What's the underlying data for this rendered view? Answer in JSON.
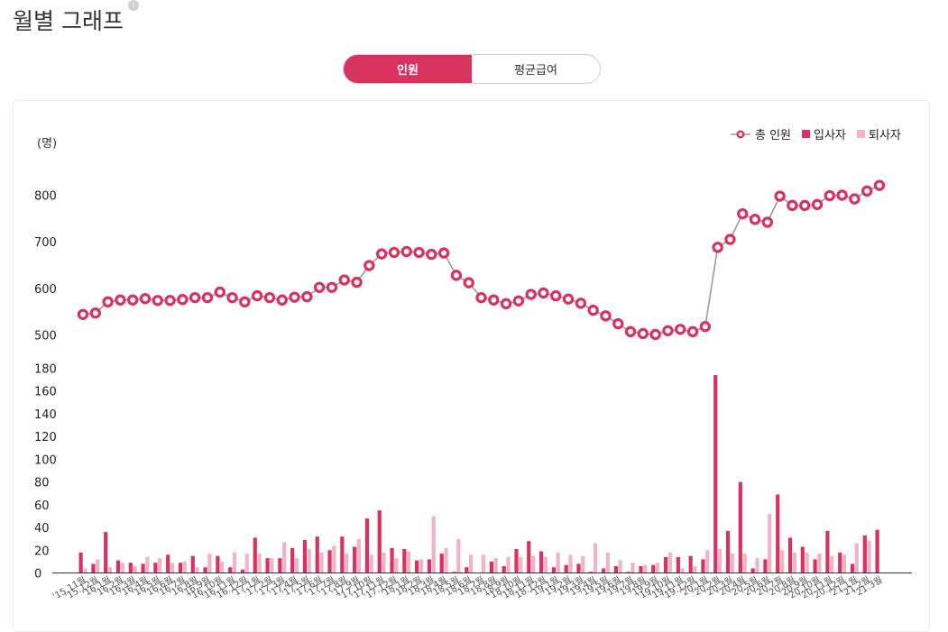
{
  "page": {
    "title": "월별 그래프",
    "info_icon": "i"
  },
  "toggle": {
    "options": [
      "인원",
      "평균급여"
    ],
    "active": 0
  },
  "colors": {
    "accent": "#d8325f",
    "hire": "#d8325f",
    "leave": "#f2b3c6",
    "line": "#9a9a9a"
  },
  "chart_data": [
    {
      "type": "line",
      "unit": "(명)",
      "yticks": [
        500,
        600,
        700,
        800
      ],
      "ylim": [
        500,
        830
      ],
      "series": [
        {
          "name": "총 인원",
          "values": [
            544,
            547,
            571,
            575,
            575,
            578,
            574,
            574,
            576,
            580,
            580,
            592,
            580,
            571,
            584,
            580,
            575,
            581,
            582,
            602,
            602,
            618,
            613,
            649,
            674,
            677,
            679,
            677,
            673,
            676,
            628,
            612,
            580,
            575,
            567,
            573,
            587,
            590,
            584,
            577,
            568,
            553,
            541,
            524,
            507,
            503,
            501,
            509,
            512,
            507,
            518,
            688,
            705,
            760,
            748,
            742,
            798,
            778,
            778,
            780,
            799,
            800,
            792,
            809,
            821
          ]
        }
      ],
      "legend_position": "top-right"
    },
    {
      "type": "bar",
      "yticks": [
        0,
        20,
        40,
        60,
        80,
        100,
        120,
        140,
        160,
        180
      ],
      "ylim": [
        0,
        180
      ],
      "categories": [
        "'15.11월",
        "'15.12월",
        "'16.1월",
        "'16.2월",
        "'16.3월",
        "'16.4월",
        "'16.5월",
        "'16.6월",
        "'16.7월",
        "'16.8월",
        "'16.9월",
        "'16.10월",
        "'16.11월",
        "'16.12월",
        "'17.1월",
        "'17.2월",
        "'17.3월",
        "'17.4월",
        "'17.5월",
        "'17.6월",
        "'17.7월",
        "'17.8월",
        "'17.9월",
        "'17.10월",
        "'17.11월",
        "'17.12월",
        "'18.1월",
        "'18.2월",
        "'18.3월",
        "'18.4월",
        "'18.5월",
        "'18.6월",
        "'18.7월",
        "'18.8월",
        "'18.9월",
        "'18.10월",
        "'18.11월",
        "'18.12월",
        "'19.1월",
        "'19.2월",
        "'19.3월",
        "'19.4월",
        "'19.5월",
        "'19.6월",
        "'19.7월",
        "'19.8월",
        "'19.9월",
        "'19.10월",
        "'19.11월",
        "'19.12월",
        "'20.1월",
        "'20.2월",
        "'20.3월",
        "'20.4월",
        "'20.5월",
        "'20.6월",
        "'20.7월",
        "'20.8월",
        "'20.9월",
        "'20.10월",
        "'20.11월",
        "'20.12월",
        "'21.1월",
        "'21.2월",
        "'21.3월"
      ],
      "series": [
        {
          "name": "입사자",
          "values": [
            18,
            8,
            36,
            11,
            9,
            8,
            9,
            16,
            9,
            15,
            5,
            15,
            5,
            3,
            31,
            13,
            13,
            22,
            29,
            32,
            20,
            32,
            23,
            48,
            55,
            22,
            21,
            11,
            12,
            17,
            1,
            5,
            0,
            10,
            6,
            21,
            28,
            19,
            5,
            7,
            8,
            1,
            4,
            6,
            1,
            6,
            7,
            14,
            14,
            15,
            12,
            174,
            37,
            80,
            4,
            12,
            69,
            31,
            23,
            12,
            37,
            18,
            8,
            33,
            38
          ]
        },
        {
          "name": "퇴사자",
          "values": [
            4,
            12,
            5,
            9,
            6,
            14,
            13,
            9,
            10,
            5,
            17,
            10,
            18,
            17,
            17,
            13,
            27,
            13,
            21,
            18,
            24,
            17,
            30,
            16,
            18,
            13,
            19,
            12,
            50,
            22,
            30,
            16,
            16,
            13,
            14,
            14,
            15,
            14,
            18,
            16,
            15,
            26,
            18,
            11,
            9,
            7,
            9,
            18,
            4,
            6,
            20,
            21,
            17,
            17,
            13,
            52,
            20,
            18,
            18,
            17,
            15,
            16,
            26,
            28,
            0
          ]
        }
      ],
      "legend_position": "top-right"
    }
  ]
}
